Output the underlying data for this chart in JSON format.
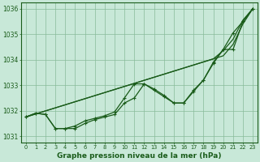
{
  "background_color": "#c8e8d8",
  "plot_bg_color": "#c8e8d8",
  "grid_color": "#88bb99",
  "line_color": "#1a5c1a",
  "title": "Graphe pression niveau de la mer (hPa)",
  "xlabel_hours": [
    0,
    1,
    2,
    3,
    4,
    5,
    6,
    7,
    8,
    9,
    10,
    11,
    12,
    13,
    14,
    15,
    16,
    17,
    18,
    19,
    20,
    21,
    22,
    23
  ],
  "ylim": [
    1030.75,
    1036.25
  ],
  "yticks": [
    1031,
    1032,
    1033,
    1034,
    1035,
    1036
  ],
  "series_smooth": [
    [
      1031.75,
      1031.87,
      1031.99,
      1032.11,
      1032.23,
      1032.35,
      1032.47,
      1032.59,
      1032.71,
      1032.83,
      1032.95,
      1033.07,
      1033.19,
      1033.31,
      1033.43,
      1033.55,
      1033.67,
      1033.79,
      1033.91,
      1034.03,
      1034.15,
      1034.6,
      1035.4,
      1036.0
    ],
    [
      1031.75,
      1031.87,
      1031.99,
      1032.11,
      1032.23,
      1032.35,
      1032.47,
      1032.59,
      1032.71,
      1032.83,
      1032.95,
      1033.07,
      1033.19,
      1033.31,
      1033.43,
      1033.55,
      1033.67,
      1033.79,
      1033.91,
      1034.03,
      1034.35,
      1034.8,
      1035.55,
      1036.0
    ]
  ],
  "series_jagged": [
    [
      1031.75,
      1031.9,
      1031.85,
      1031.3,
      1031.3,
      1031.3,
      1031.5,
      1031.65,
      1031.75,
      1031.85,
      1032.3,
      1032.5,
      1033.05,
      1032.8,
      1032.55,
      1032.3,
      1032.3,
      1032.75,
      1033.2,
      1033.85,
      1034.4,
      1035.05,
      1035.5,
      1036.0
    ],
    [
      1031.75,
      1031.9,
      1031.85,
      1031.3,
      1031.3,
      1031.4,
      1031.6,
      1031.7,
      1031.8,
      1031.95,
      1032.5,
      1033.05,
      1033.05,
      1032.85,
      1032.6,
      1032.3,
      1032.3,
      1032.8,
      1033.2,
      1033.9,
      1034.4,
      1034.4,
      1035.5,
      1036.0
    ]
  ]
}
